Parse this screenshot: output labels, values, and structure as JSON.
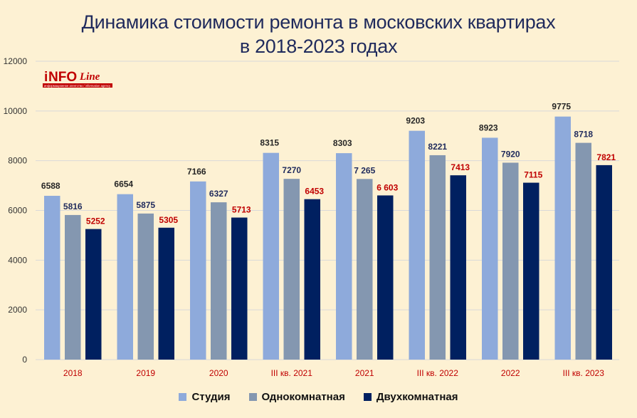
{
  "title_line1": "Динамика стоимости ремонта в московских квартирах",
  "title_line2": "в 2018-2023 годах",
  "logo": {
    "main": "INFOLine",
    "tagline": "информационное агентство / information agency"
  },
  "chart_data": {
    "type": "bar",
    "categories": [
      "2018",
      "2019",
      "2020",
      "III кв. 2021",
      "2021",
      "III кв. 2022",
      "2022",
      "III кв. 2023"
    ],
    "series": [
      {
        "name": "Студия",
        "color": "#8eaadb",
        "values": [
          6588,
          6654,
          7166,
          8315,
          8303,
          9203,
          8923,
          9775
        ],
        "labels": [
          "6588",
          "6654",
          "7166",
          "8315",
          "8303",
          "9203",
          "8923",
          "9775"
        ]
      },
      {
        "name": "Однокомнатная",
        "color": "#8497b0",
        "values": [
          5816,
          5875,
          6327,
          7270,
          7265,
          8221,
          7920,
          8718
        ],
        "labels": [
          "5816",
          "5875",
          "6327",
          "7270",
          "7 265",
          "8221",
          "7920",
          "8718"
        ]
      },
      {
        "name": "Двухкомнатная",
        "color": "#002060",
        "values": [
          5252,
          5305,
          5713,
          6453,
          6603,
          7413,
          7115,
          7821
        ],
        "labels": [
          "5252",
          "5305",
          "5713",
          "6453",
          "6 603",
          "7413",
          "7115",
          "7821"
        ]
      }
    ],
    "ylim": [
      0,
      12000
    ],
    "yticks": [
      "0",
      "2000",
      "4000",
      "6000",
      "8000",
      "10000",
      "12000"
    ],
    "label_colors": [
      "#262626",
      "#1f2a5c",
      "#c00000"
    ],
    "category_label_color": "#c00000",
    "grid": true,
    "legend_position": "bottom"
  }
}
